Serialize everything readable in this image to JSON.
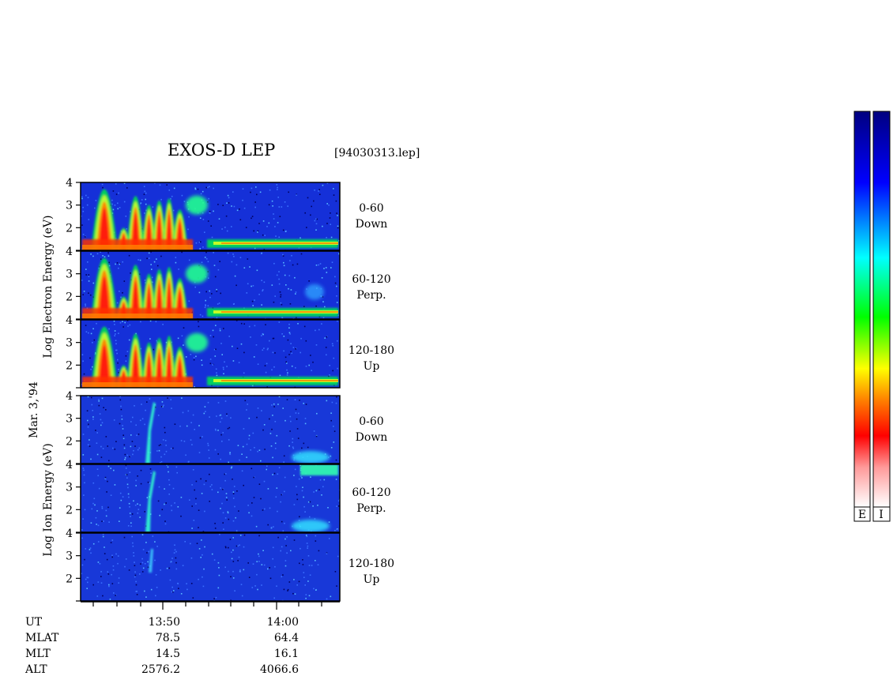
{
  "title": "EXOS-D LEP",
  "file_label": "[94030313.lep]",
  "date_label": "Mar. 3,'94",
  "electron_axis_label": "Log   Electron   Energy  (eV)",
  "ion_axis_label": "Log    Ion    Energy  (eV)",
  "colorbar_labels": [
    "E",
    "I"
  ],
  "colors": {
    "spectrum": [
      "#ffffff",
      "#ff8a8a",
      "#ff0000",
      "#ff8000",
      "#ffff00",
      "#00ff00",
      "#00ffff",
      "#0000ff",
      "#000080"
    ]
  },
  "chart_data": {
    "type": "heatmap",
    "panels": [
      {
        "species": "Electron",
        "pitch_angle": "0-60",
        "direction": "Down",
        "ylim": [
          1,
          4
        ],
        "yticks": [
          "2",
          "3",
          "4"
        ]
      },
      {
        "species": "Electron",
        "pitch_angle": "60-120",
        "direction": "Perp.",
        "ylim": [
          1,
          4
        ],
        "yticks": [
          "2",
          "3",
          "4"
        ]
      },
      {
        "species": "Electron",
        "pitch_angle": "120-180",
        "direction": "Up",
        "ylim": [
          1,
          4
        ],
        "yticks": [
          "2",
          "3",
          "4"
        ]
      },
      {
        "species": "Ion",
        "pitch_angle": "0-60",
        "direction": "Down",
        "ylim": [
          1,
          4
        ],
        "yticks": [
          "2",
          "3",
          "4"
        ]
      },
      {
        "species": "Ion",
        "pitch_angle": "60-120",
        "direction": "Perp.",
        "ylim": [
          1,
          4
        ],
        "yticks": [
          "2",
          "3",
          "4"
        ]
      },
      {
        "species": "Ion",
        "pitch_angle": "120-180",
        "direction": "Up",
        "ylim": [
          1,
          4
        ],
        "yticks": [
          "2",
          "3",
          "4"
        ]
      }
    ],
    "x_ticks": [
      "13:50",
      "14:00"
    ],
    "footer": [
      {
        "label": "UT",
        "values": [
          "13:50",
          "14:00"
        ]
      },
      {
        "label": "MLAT",
        "values": [
          "78.5",
          "64.4"
        ]
      },
      {
        "label": "MLT",
        "values": [
          "14.5",
          "16.1"
        ]
      },
      {
        "label": "ALT",
        "values": [
          "2576.2",
          "4066.6"
        ]
      }
    ]
  }
}
